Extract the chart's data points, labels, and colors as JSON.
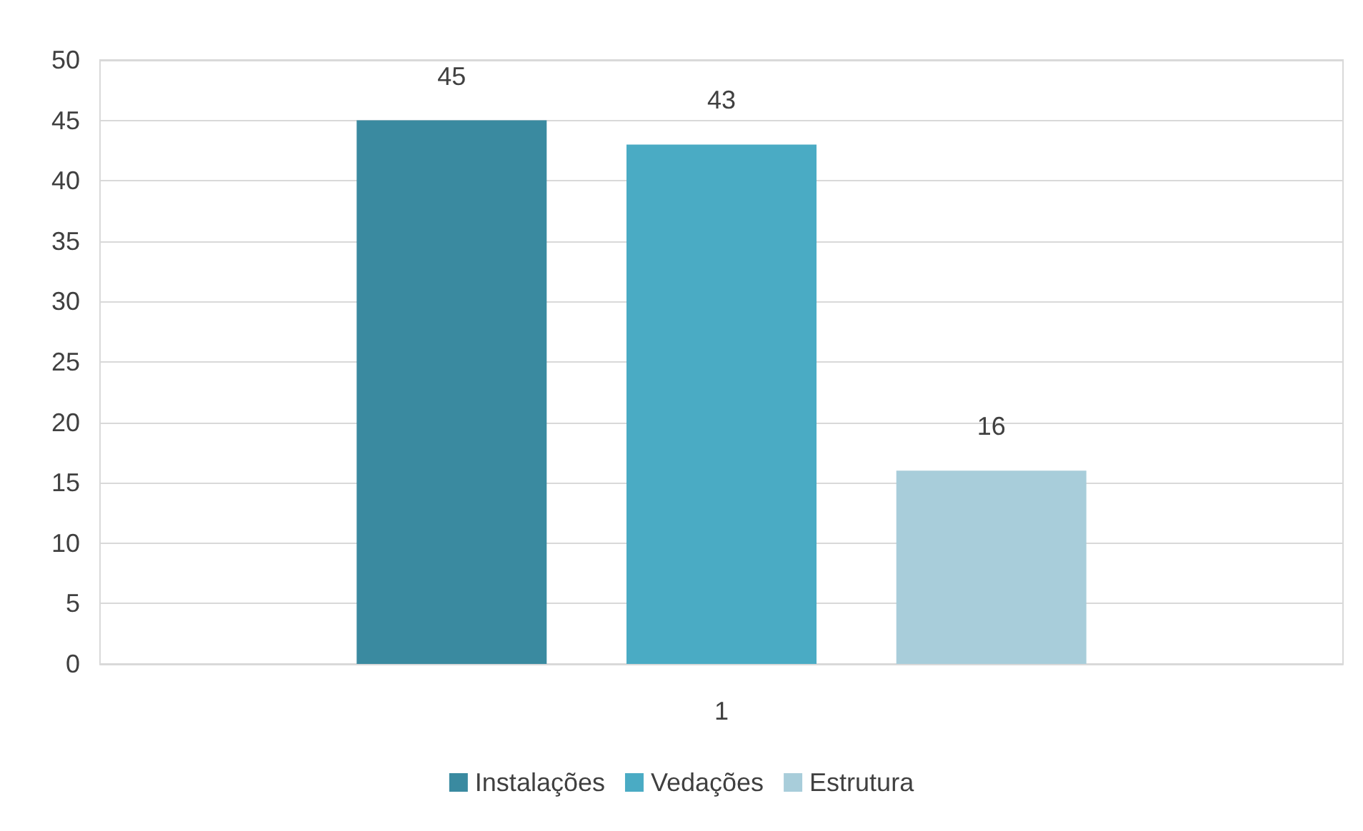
{
  "chart_data": {
    "type": "bar",
    "categories": [
      "1"
    ],
    "series": [
      {
        "name": "Instalações",
        "color": "#3a8aa0",
        "values": [
          45
        ]
      },
      {
        "name": "Vedações",
        "color": "#4aabc4",
        "values": [
          43
        ]
      },
      {
        "name": "Estrutura",
        "color": "#a8cdda",
        "values": [
          16
        ]
      }
    ],
    "ylim": [
      0,
      50
    ],
    "yticks": [
      0,
      5,
      10,
      15,
      20,
      25,
      30,
      35,
      40,
      45,
      50
    ],
    "grid": "y",
    "legend": "bottom",
    "data_labels": true
  }
}
